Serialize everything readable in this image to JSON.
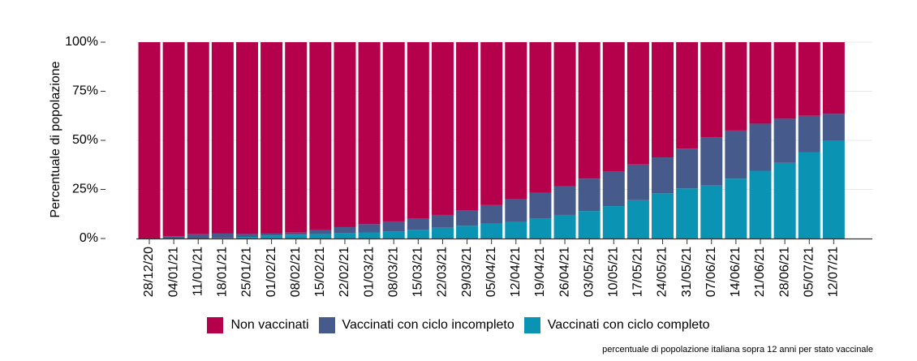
{
  "chart_data": {
    "type": "bar",
    "stacked": true,
    "ylabel": "Percentuale di popolazione",
    "xlabel": "",
    "ylim": [
      0,
      100
    ],
    "yticks": [
      "0%",
      "25%",
      "50%",
      "75%",
      "100%"
    ],
    "ytick_values": [
      0,
      25,
      50,
      75,
      100
    ],
    "grid": "horizontal",
    "legend_position": "bottom",
    "categories": [
      "28/12/20",
      "04/01/21",
      "11/01/21",
      "18/01/21",
      "25/01/21",
      "01/02/21",
      "08/02/21",
      "15/02/21",
      "22/02/21",
      "01/03/21",
      "08/03/21",
      "15/03/21",
      "22/03/21",
      "29/03/21",
      "05/04/21",
      "12/04/21",
      "19/04/21",
      "26/04/21",
      "03/05/21",
      "10/05/21",
      "17/05/21",
      "24/05/21",
      "31/05/21",
      "07/06/21",
      "14/06/21",
      "21/06/21",
      "28/06/21",
      "05/07/21",
      "12/07/21"
    ],
    "series": [
      {
        "name": "Vaccinati con ciclo completo",
        "color": "#0a93b2",
        "values": [
          0,
          0,
          0,
          0.3,
          0.8,
          1.5,
          2,
          2.3,
          2.6,
          3.1,
          3.7,
          4.5,
          5.5,
          6.5,
          7.5,
          8.5,
          10,
          12,
          14,
          16.5,
          19.5,
          23,
          25.5,
          27,
          30.5,
          34.5,
          38.5,
          44,
          50
        ]
      },
      {
        "name": "Vaccinati con ciclo incompleto",
        "color": "#465a8c",
        "values": [
          0,
          1.2,
          2.2,
          2.2,
          1.5,
          1,
          1,
          2,
          3.2,
          4.2,
          5,
          5.5,
          6.5,
          7.8,
          9.5,
          11.5,
          13.2,
          14.5,
          16.5,
          17.8,
          18.2,
          18.3,
          20.3,
          24.5,
          24.5,
          24,
          22.5,
          18.5,
          13.5
        ]
      },
      {
        "name": "Non vaccinati",
        "color": "#b5004c",
        "values": [
          100,
          98.8,
          97.8,
          97.5,
          97.7,
          97.5,
          97,
          95.7,
          94.2,
          92.7,
          91.3,
          90,
          88,
          85.7,
          83,
          80,
          76.8,
          73.5,
          69.5,
          65.7,
          62.3,
          58.7,
          54.2,
          48.5,
          45,
          41.5,
          39,
          37.5,
          36.5
        ]
      }
    ]
  },
  "legend": [
    {
      "label": "Non vaccinati",
      "color": "#b5004c"
    },
    {
      "label": "Vaccinati con ciclo incompleto",
      "color": "#465a8c"
    },
    {
      "label": "Vaccinati con ciclo completo",
      "color": "#0a93b2"
    }
  ],
  "caption": "percentuale di popolazione italiana sopra 12 anni per stato vaccinale"
}
